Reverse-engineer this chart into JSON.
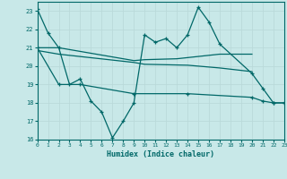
{
  "xlabel": "Humidex (Indice chaleur)",
  "background_color": "#c8e8e8",
  "grid_color": "#b8d8d8",
  "line_color": "#006868",
  "xlim": [
    0,
    23
  ],
  "ylim": [
    16,
    23.5
  ],
  "yticks": [
    16,
    17,
    18,
    19,
    20,
    21,
    22,
    23
  ],
  "xticks": [
    0,
    1,
    2,
    3,
    4,
    5,
    6,
    7,
    8,
    9,
    10,
    11,
    12,
    13,
    14,
    15,
    16,
    17,
    18,
    19,
    20,
    21,
    22,
    23
  ],
  "line1_x": [
    0,
    1,
    2,
    3,
    4,
    5,
    6,
    7,
    8,
    9,
    10,
    11,
    12,
    13,
    14,
    15,
    16,
    17,
    20,
    21,
    22,
    23
  ],
  "line1_y": [
    23.1,
    21.8,
    21.0,
    19.0,
    19.3,
    18.1,
    17.5,
    16.1,
    17.0,
    18.0,
    21.7,
    21.3,
    21.5,
    21.0,
    21.7,
    23.2,
    22.4,
    21.2,
    19.6,
    18.8,
    18.0,
    18.0
  ],
  "line2_x": [
    0,
    2,
    9,
    10,
    13,
    17,
    20
  ],
  "line2_y": [
    21.0,
    21.0,
    20.3,
    20.35,
    20.4,
    20.65,
    20.65
  ],
  "line3_x": [
    0,
    2,
    9,
    10,
    14,
    17,
    20,
    21,
    22,
    23
  ],
  "line3_y": [
    20.85,
    20.65,
    20.2,
    20.1,
    20.05,
    19.9,
    19.7,
    null,
    null,
    null
  ],
  "line4_x": [
    0,
    2,
    4,
    9,
    14,
    20,
    21,
    22,
    23
  ],
  "line4_y": [
    21.0,
    19.0,
    19.0,
    18.5,
    18.5,
    18.3,
    18.1,
    18.0,
    18.0
  ]
}
